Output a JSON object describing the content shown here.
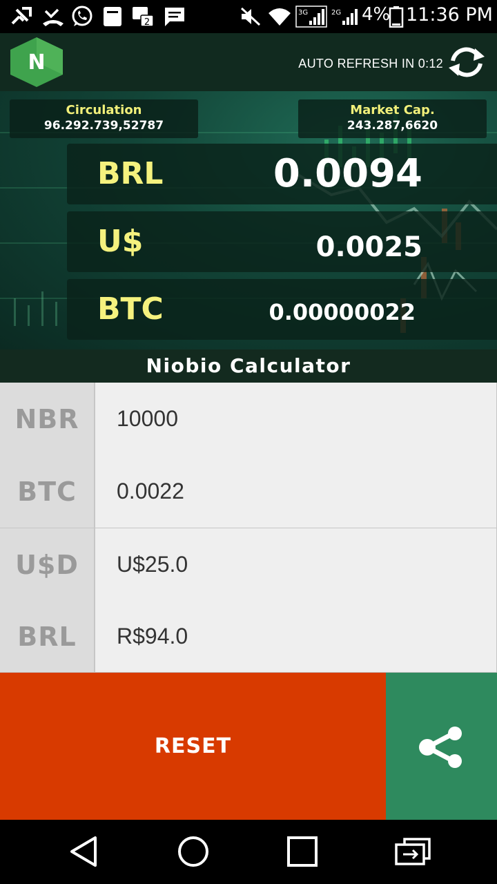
{
  "status_bar": {
    "battery": "4%",
    "time": "11:36 PM",
    "network_3g": "3G",
    "network_2g": "2G"
  },
  "header": {
    "logo_letter": "N",
    "auto_refresh": "AUTO REFRESH IN 0:12"
  },
  "stats": {
    "circulation_label": "Circulation",
    "circulation_value": "96.292.739,52787",
    "market_cap_label": "Market Cap.",
    "market_cap_value": "243.287,6620"
  },
  "prices": [
    {
      "currency": "BRL",
      "value": "0.0094"
    },
    {
      "currency": "U$",
      "value": "0.0025"
    },
    {
      "currency": "BTC",
      "value": "0.00000022"
    }
  ],
  "calculator": {
    "title": "Niobio Calculator",
    "rows": [
      {
        "label": "NBR",
        "value": "10000"
      },
      {
        "label": "BTC",
        "value": "0.0022"
      },
      {
        "label": "U$D",
        "value": "U$25.0"
      },
      {
        "label": "BRL",
        "value": "R$94.0"
      }
    ],
    "reset_label": "RESET"
  },
  "colors": {
    "header_bg": "#112a1f",
    "accent_yellow": "#f5f27e",
    "reset_orange": "#d83a00",
    "share_green": "#2e8a5e",
    "logo_green": "#4caf50"
  },
  "icons": {
    "refresh": "refresh-icon",
    "share": "share-icon",
    "back": "back-icon",
    "home": "home-icon",
    "recents": "recents-icon",
    "switch": "switch-app-icon"
  }
}
